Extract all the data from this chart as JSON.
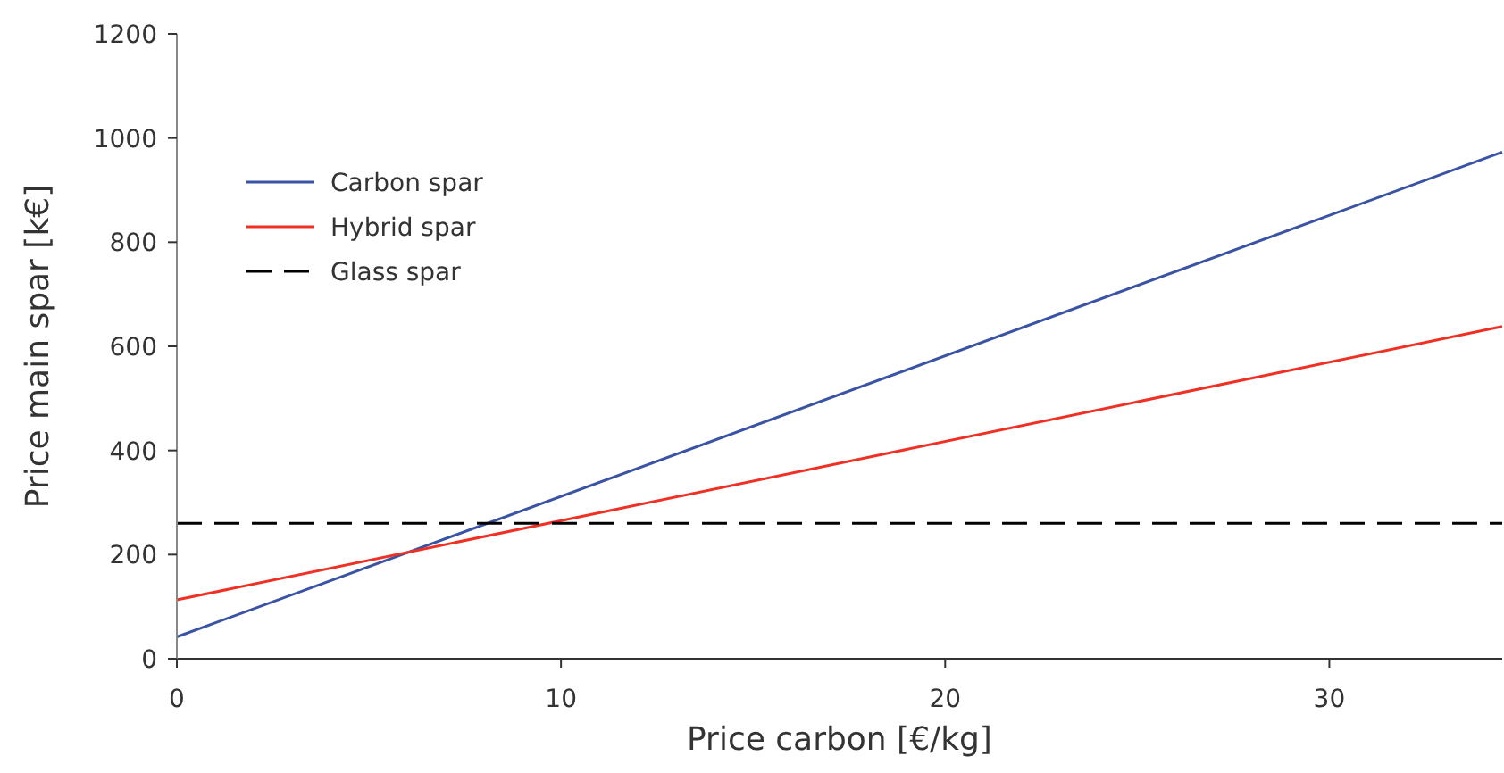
{
  "chart_data": {
    "type": "line",
    "xlabel": "Price carbon [€/kg]",
    "ylabel": "Price main spar [k€]",
    "xlim": [
      0,
      34.5
    ],
    "xticks": [
      0,
      10,
      20,
      30
    ],
    "ylim": [
      0,
      1200
    ],
    "yticks": [
      0,
      200,
      400,
      600,
      800,
      1000,
      1200
    ],
    "grid": false,
    "legend": "top left",
    "marker": "none",
    "x": [
      0,
      34.5
    ],
    "series": [
      {
        "name": "Carbon spar",
        "color": "#3a53a4",
        "values": [
          42,
          973
        ],
        "line_style": "solid"
      },
      {
        "name": "Hybrid spar",
        "color": "#ee3124",
        "values": [
          113,
          638
        ],
        "line_style": "solid"
      },
      {
        "name": "Glass spar",
        "color": "#000000",
        "values": [
          260,
          260
        ],
        "line_style": "dashed"
      }
    ]
  }
}
